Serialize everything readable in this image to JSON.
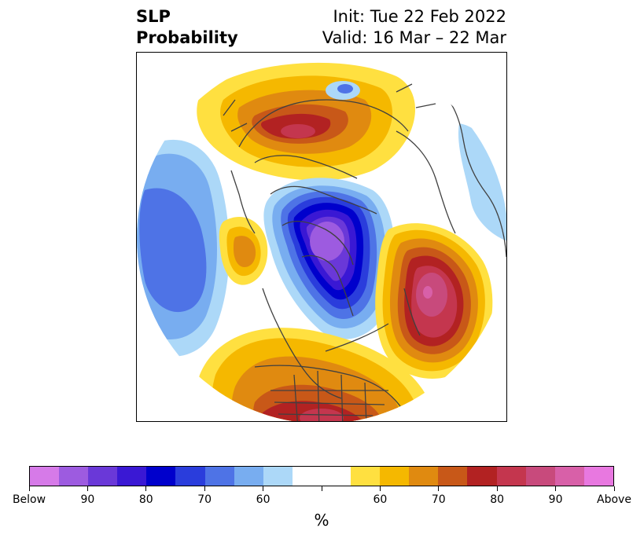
{
  "title": {
    "left_line1": "SLP",
    "left_line2": "Probability",
    "right_line1": "Init: Tue 22 Feb 2022",
    "right_line2": "Valid: 16 Mar – 22 Mar"
  },
  "colorbar": {
    "colors": [
      "#d67ae8",
      "#9d5be0",
      "#6a38d8",
      "#3a18d4",
      "#0000cc",
      "#2a3ddc",
      "#4e73e6",
      "#78adf0",
      "#acd8f8",
      "#ffffff",
      "#ffffff",
      "#ffe040",
      "#f5b800",
      "#e08a10",
      "#c85818",
      "#b22222",
      "#c4364e",
      "#c84a7c",
      "#d860a8",
      "#e878e0"
    ],
    "tick_labels": [
      "Below",
      "90",
      "80",
      "70",
      "60",
      "",
      "60",
      "70",
      "80",
      "90",
      "Above"
    ],
    "units": "%"
  },
  "map": {
    "projection": "north-polar-stereographic",
    "features": [
      "below-normal-pressure-arctic-canada",
      "above-normal-pressure-europe",
      "above-normal-pressure-north-atlantic",
      "below-normal-pressure-north-pacific",
      "above-normal-pressure-eastern-us"
    ]
  }
}
